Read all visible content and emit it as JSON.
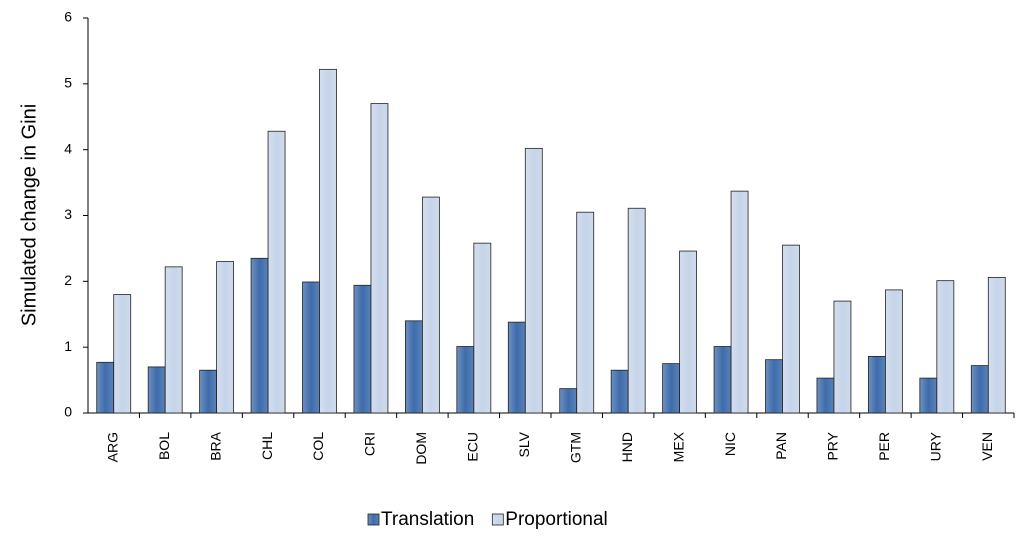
{
  "chart_data": {
    "type": "bar",
    "y_label": "Simulated change in Gini",
    "categories": [
      "ARG",
      "BOL",
      "BRA",
      "CHL",
      "COL",
      "CRI",
      "DOM",
      "ECU",
      "SLV",
      "GTM",
      "HND",
      "MEX",
      "NIC",
      "PAN",
      "PRY",
      "PER",
      "URY",
      "VEN"
    ],
    "series": [
      {
        "name": "Translation",
        "color": "#3e6cab",
        "values": [
          0.77,
          0.7,
          0.65,
          2.35,
          1.99,
          1.94,
          1.4,
          1.01,
          1.38,
          0.37,
          0.65,
          0.75,
          1.01,
          0.81,
          0.53,
          0.86,
          0.53,
          0.72
        ]
      },
      {
        "name": "Proportional",
        "color": "#c6d4e9",
        "values": [
          1.8,
          2.22,
          2.3,
          4.28,
          5.22,
          4.7,
          3.28,
          2.58,
          4.02,
          3.05,
          3.11,
          2.46,
          3.37,
          2.55,
          1.7,
          1.87,
          2.01,
          2.06
        ]
      }
    ],
    "ylim": [
      0,
      6
    ],
    "yticks": [
      0,
      1,
      2,
      3,
      4,
      5,
      6
    ],
    "grid": false,
    "legend": "bottom"
  }
}
